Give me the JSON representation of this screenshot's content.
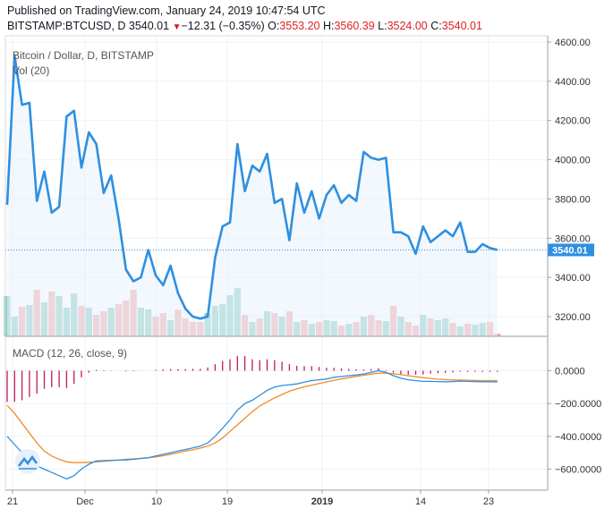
{
  "header": {
    "published": "Published on TradingView.com, January 24, 2019 10:47:54 UTC",
    "symbol": "BITSTAMP:BTCUSD, D",
    "last": "3540.01",
    "change": "−12.31 (−0.35%)",
    "o_label": "O:",
    "o_value": "3553.20",
    "h_label": "H:",
    "h_value": "3560.39",
    "l_label": "L:",
    "l_value": "3524.00",
    "c_label": "C:",
    "c_value": "3540.01"
  },
  "colors": {
    "price_line": "#2f8fe0",
    "vol_up": "#8ccbc0",
    "vol_down": "#f2a9ab",
    "macd_line": "#2f8fe0",
    "signal_line": "#f28b2a",
    "histogram": "#c2185b",
    "price_tag": "#2f8fe0"
  },
  "chart_data": [
    {
      "type": "line",
      "title": "Bitcoin / Dollar, D, BITSTAMP",
      "volume_label": "Vol (20)",
      "y_ticks": [
        "4600.00",
        "4400.00",
        "4200.00",
        "4000.00",
        "3800.00",
        "3600.00",
        "3400.00",
        "3200.00"
      ],
      "ylim": [
        3100,
        4620
      ],
      "last_price": "3540.01",
      "x_tick_labels": [
        "21",
        "Dec",
        "10",
        "19",
        "2019",
        "14",
        "23"
      ],
      "close": [
        3770,
        4530,
        4280,
        4290,
        3790,
        3940,
        3730,
        3760,
        4220,
        4250,
        3960,
        4140,
        4080,
        3830,
        3920,
        3700,
        3440,
        3380,
        3400,
        3540,
        3410,
        3360,
        3460,
        3320,
        3240,
        3200,
        3190,
        3200,
        3500,
        3660,
        3680,
        4080,
        3840,
        3970,
        3940,
        4030,
        3780,
        3800,
        3590,
        3880,
        3730,
        3840,
        3700,
        3820,
        3870,
        3780,
        3820,
        3790,
        4040,
        4010,
        4000,
        4010,
        3630,
        3630,
        3610,
        3520,
        3660,
        3580,
        3610,
        3640,
        3610,
        3680,
        3530,
        3530,
        3570,
        3550,
        3540
      ],
      "volume": [
        0.45,
        0.22,
        0.33,
        0.35,
        0.52,
        0.38,
        0.5,
        0.45,
        0.32,
        0.48,
        0.34,
        0.32,
        0.24,
        0.28,
        0.32,
        0.36,
        0.4,
        0.52,
        0.32,
        0.3,
        0.22,
        0.26,
        0.18,
        0.3,
        0.2,
        0.16,
        0.16,
        0.26,
        0.34,
        0.36,
        0.46,
        0.54,
        0.24,
        0.16,
        0.2,
        0.28,
        0.26,
        0.22,
        0.28,
        0.16,
        0.18,
        0.14,
        0.16,
        0.18,
        0.17,
        0.12,
        0.14,
        0.16,
        0.22,
        0.24,
        0.18,
        0.17,
        0.34,
        0.22,
        0.16,
        0.12,
        0.24,
        0.2,
        0.18,
        0.2,
        0.15,
        0.11,
        0.14,
        0.13,
        0.15,
        0.16,
        0.03
      ]
    },
    {
      "type": "line",
      "title": "MACD (12, 26, close, 9)",
      "y_ticks": [
        "0.0000",
        "-200.0000",
        "-400.0000",
        "-600.0000"
      ],
      "ylim": [
        -700,
        80
      ],
      "macd": [
        -400,
        -450,
        -500,
        -540,
        -580,
        -600,
        -620,
        -640,
        -660,
        -640,
        -600,
        -570,
        -550,
        -548,
        -546,
        -545,
        -544,
        -540,
        -535,
        -530,
        -520,
        -510,
        -500,
        -490,
        -480,
        -470,
        -460,
        -440,
        -400,
        -350,
        -300,
        -240,
        -200,
        -180,
        -150,
        -120,
        -100,
        -90,
        -85,
        -80,
        -70,
        -60,
        -55,
        -50,
        -40,
        -35,
        -30,
        -25,
        -20,
        -10,
        0,
        -10,
        -30,
        -45,
        -55,
        -60,
        -65,
        -65,
        -66,
        -67,
        -66,
        -63,
        -65,
        -66,
        -67,
        -67,
        -68
      ],
      "signal": [
        -210,
        -260,
        -320,
        -380,
        -440,
        -490,
        -520,
        -540,
        -555,
        -560,
        -560,
        -558,
        -556,
        -552,
        -548,
        -545,
        -540,
        -537,
        -534,
        -530,
        -525,
        -518,
        -510,
        -500,
        -490,
        -482,
        -472,
        -460,
        -440,
        -410,
        -370,
        -330,
        -290,
        -250,
        -215,
        -190,
        -165,
        -145,
        -125,
        -110,
        -98,
        -88,
        -78,
        -68,
        -58,
        -50,
        -42,
        -34,
        -28,
        -20,
        -15,
        -14,
        -18,
        -24,
        -30,
        -36,
        -42,
        -47,
        -51,
        -54,
        -56,
        -57,
        -58,
        -59,
        -60,
        -60,
        -61
      ],
      "histogram": [
        -190,
        -190,
        -180,
        -160,
        -140,
        -110,
        -100,
        -100,
        -105,
        -80,
        -40,
        -12,
        6,
        4,
        2,
        0,
        -4,
        -3,
        -1,
        0,
        5,
        8,
        10,
        10,
        10,
        12,
        12,
        20,
        40,
        60,
        70,
        90,
        90,
        70,
        65,
        70,
        65,
        55,
        40,
        30,
        28,
        28,
        23,
        18,
        18,
        15,
        12,
        9,
        8,
        10,
        15,
        4,
        -12,
        -21,
        -25,
        -24,
        -23,
        -18,
        -15,
        -13,
        -10,
        -6,
        -7,
        -7,
        -7,
        -7,
        -7
      ]
    }
  ]
}
